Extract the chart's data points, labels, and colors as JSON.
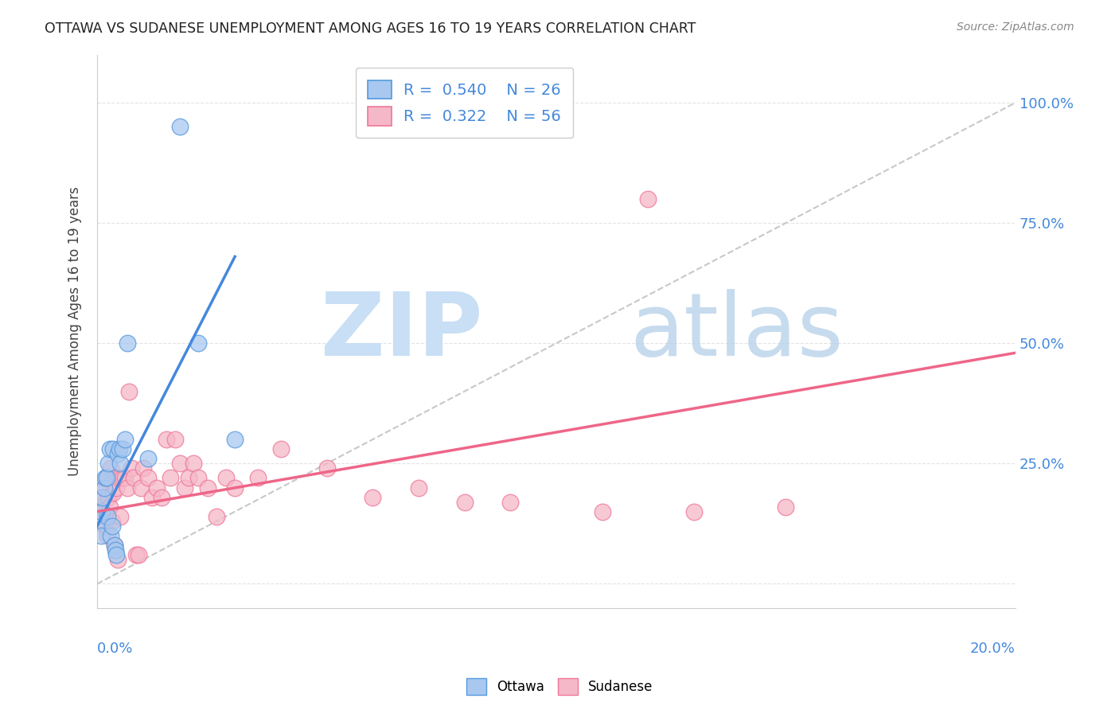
{
  "title": "OTTAWA VS SUDANESE UNEMPLOYMENT AMONG AGES 16 TO 19 YEARS CORRELATION CHART",
  "source": "Source: ZipAtlas.com",
  "ylabel": "Unemployment Among Ages 16 to 19 years",
  "ytick_labels": [
    "",
    "25.0%",
    "50.0%",
    "75.0%",
    "100.0%"
  ],
  "ytick_values": [
    0,
    25,
    50,
    75,
    100
  ],
  "xlim": [
    0.0,
    20.0
  ],
  "ylim": [
    -5.0,
    110.0
  ],
  "ottawa_R": "0.540",
  "ottawa_N": "26",
  "sudanese_R": "0.322",
  "sudanese_N": "56",
  "ottawa_color": "#a8c8f0",
  "sudanese_color": "#f5b8c8",
  "ottawa_edge_color": "#5599dd",
  "sudanese_edge_color": "#ee7799",
  "ottawa_line_color": "#4488dd",
  "sudanese_line_color": "#ee6688",
  "ref_line_color": "#c8c8c8",
  "background_color": "#ffffff",
  "grid_color": "#dddddd",
  "ottawa_x": [
    0.05,
    0.08,
    0.1,
    0.12,
    0.15,
    0.18,
    0.2,
    0.22,
    0.25,
    0.28,
    0.3,
    0.32,
    0.35,
    0.38,
    0.4,
    0.42,
    0.45,
    0.48,
    0.5,
    0.55,
    0.6,
    0.65,
    1.8,
    2.2,
    3.0,
    1.1
  ],
  "ottawa_y": [
    13,
    10,
    15,
    18,
    20,
    22,
    22,
    14,
    25,
    28,
    10,
    12,
    28,
    8,
    7,
    6,
    27,
    28,
    25,
    28,
    30,
    50,
    95,
    50,
    30,
    26
  ],
  "sudanese_x": [
    0.05,
    0.08,
    0.1,
    0.12,
    0.15,
    0.18,
    0.2,
    0.22,
    0.25,
    0.28,
    0.3,
    0.32,
    0.35,
    0.38,
    0.4,
    0.42,
    0.45,
    0.48,
    0.5,
    0.55,
    0.6,
    0.65,
    0.7,
    0.75,
    0.8,
    0.85,
    0.9,
    0.95,
    1.0,
    1.1,
    1.2,
    1.3,
    1.4,
    1.5,
    1.6,
    1.7,
    1.8,
    1.9,
    2.0,
    2.1,
    2.2,
    2.4,
    2.6,
    2.8,
    3.0,
    3.5,
    4.0,
    5.0,
    6.0,
    7.0,
    8.0,
    9.0,
    11.0,
    12.0,
    13.0,
    15.0
  ],
  "sudanese_y": [
    15,
    16,
    18,
    14,
    20,
    12,
    22,
    10,
    18,
    16,
    24,
    13,
    19,
    8,
    22,
    20,
    5,
    22,
    14,
    22,
    22,
    20,
    40,
    24,
    22,
    6,
    6,
    20,
    24,
    22,
    18,
    20,
    18,
    30,
    22,
    30,
    25,
    20,
    22,
    25,
    22,
    20,
    14,
    22,
    20,
    22,
    28,
    24,
    18,
    20,
    17,
    17,
    15,
    80,
    15,
    16
  ],
  "ottawa_trend_x": [
    0.0,
    3.0
  ],
  "ottawa_trend_y": [
    12.0,
    68.0
  ],
  "sudanese_trend_x": [
    0.0,
    20.0
  ],
  "sudanese_trend_y": [
    15.0,
    48.0
  ]
}
